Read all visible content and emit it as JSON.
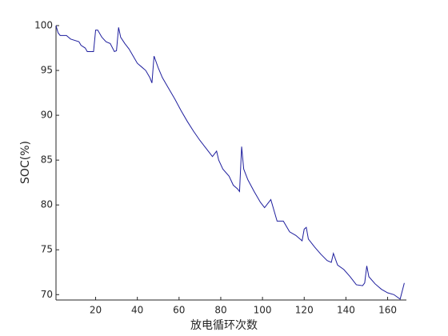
{
  "chart_data": {
    "type": "line",
    "x_label": "放电循环次数",
    "y_label": "SOC(%)",
    "x": [
      1,
      2,
      3,
      6,
      8,
      12,
      13,
      15,
      16,
      19,
      20,
      21,
      23,
      25,
      27,
      29,
      30,
      31,
      32,
      34,
      36,
      38,
      40,
      42,
      44,
      46,
      47,
      48,
      50,
      52,
      55,
      58,
      61,
      64,
      67,
      70,
      73,
      76,
      78,
      79,
      81,
      84,
      86,
      88,
      89,
      90,
      91,
      93,
      96,
      99,
      101,
      104,
      106,
      107,
      110,
      113,
      116,
      119,
      120,
      121,
      122,
      125,
      128,
      131,
      133,
      134,
      136,
      139,
      142,
      145,
      148,
      149,
      150,
      151,
      154,
      157,
      160,
      163,
      166,
      168
    ],
    "series": [
      {
        "color": "#1f1f9e",
        "values": [
          100,
          99.2,
          98.9,
          98.9,
          98.5,
          98.2,
          97.8,
          97.5,
          97.1,
          97.1,
          99.5,
          99.5,
          98.7,
          98.2,
          98.0,
          97.1,
          97.2,
          99.8,
          98.7,
          98.0,
          97.4,
          96.6,
          95.8,
          95.4,
          95.0,
          94.2,
          93.6,
          96.6,
          95.3,
          94.2,
          93.0,
          91.8,
          90.5,
          89.3,
          88.2,
          87.2,
          86.3,
          85.4,
          86.0,
          85.0,
          84.0,
          83.2,
          82.2,
          81.8,
          81.5,
          86.5,
          84.0,
          82.8,
          81.5,
          80.3,
          79.7,
          80.6,
          79.0,
          78.2,
          78.2,
          77.0,
          76.6,
          76.0,
          77.3,
          77.5,
          76.2,
          75.3,
          74.5,
          73.8,
          73.6,
          74.6,
          73.3,
          72.8,
          72.0,
          71.1,
          71.0,
          71.3,
          73.2,
          72.0,
          71.2,
          70.6,
          70.2,
          70.0,
          69.5,
          71.3
        ]
      }
    ],
    "xlim": [
      1,
      169
    ],
    "ylim": [
      69.4,
      100
    ],
    "xticks": [
      20,
      40,
      60,
      80,
      100,
      120,
      140,
      160
    ],
    "yticks": [
      70,
      75,
      80,
      85,
      90,
      95,
      100
    ]
  }
}
